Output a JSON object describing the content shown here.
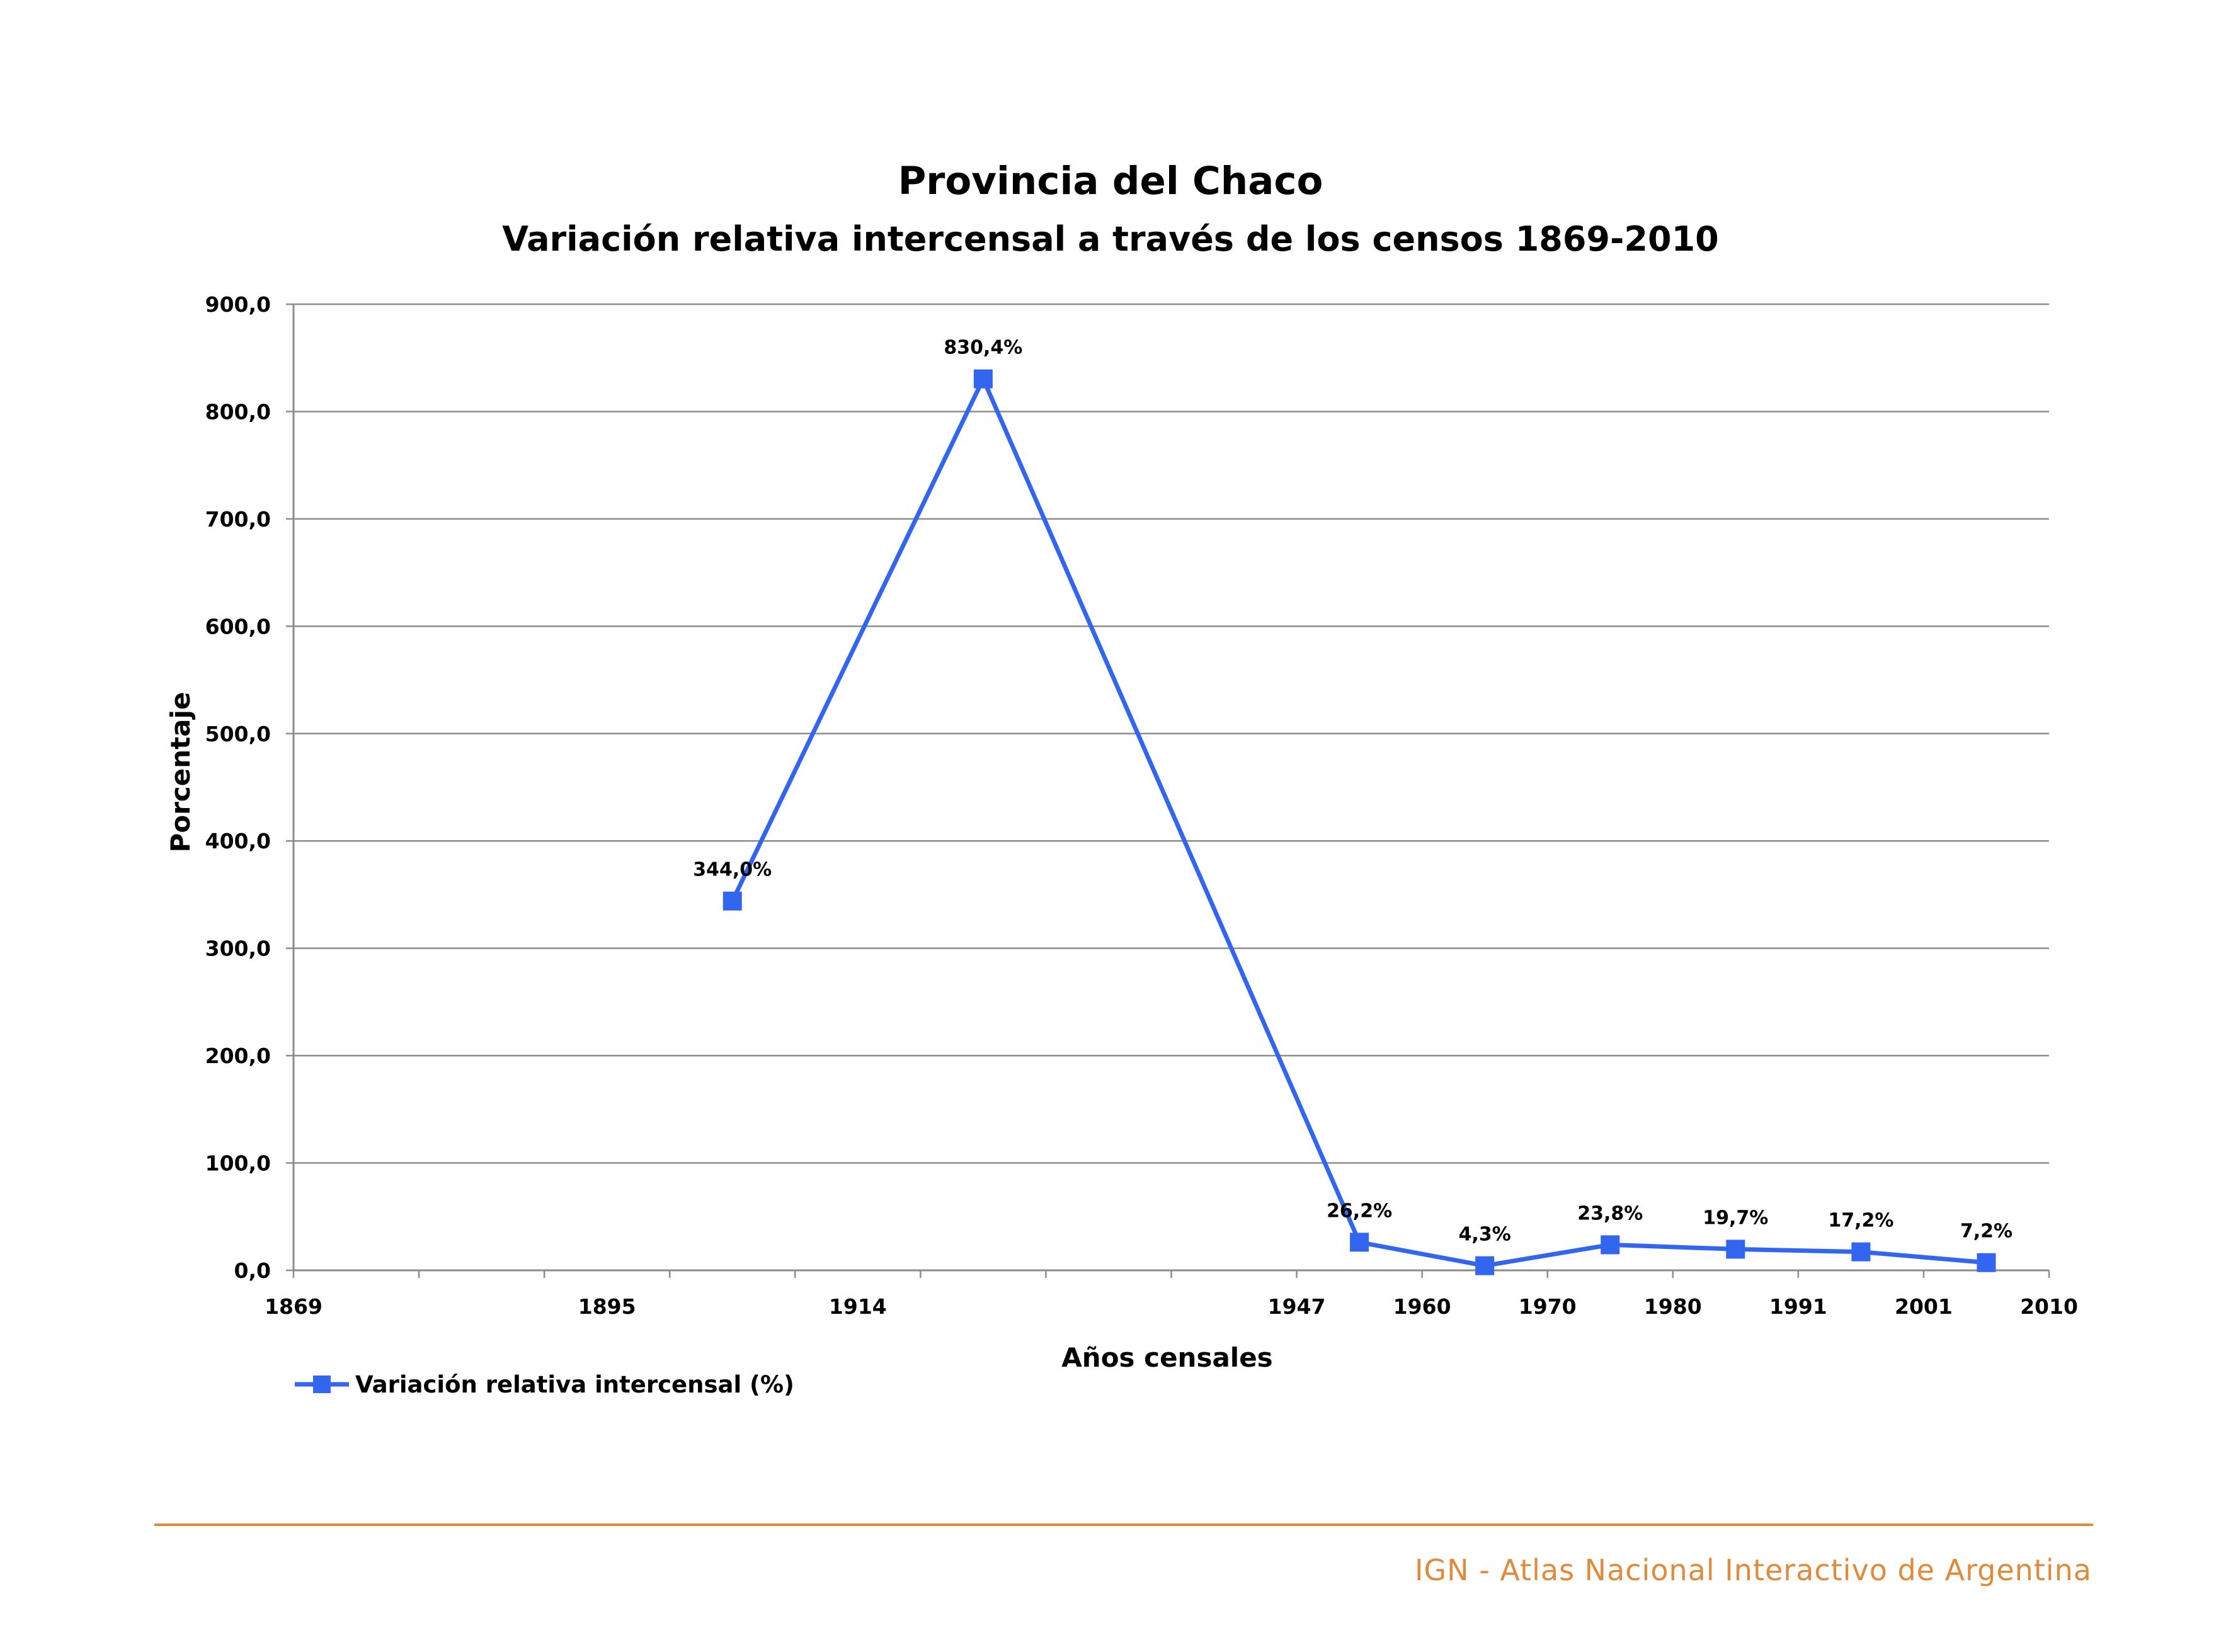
{
  "chart_data": {
    "type": "line",
    "title": "Provincia del Chaco",
    "subtitle": "Variación relativa intercensal a través de los censos 1869-2010",
    "xlabel": "Años censales",
    "ylabel": "Porcentaje",
    "ylim": [
      0,
      900
    ],
    "y_ticks": [
      "0,0",
      "100,0",
      "200,0",
      "300,0",
      "400,0",
      "500,0",
      "600,0",
      "700,0",
      "800,0",
      "900,0"
    ],
    "x_tick_labels": [
      "1869",
      "1895",
      "1914",
      "1947",
      "1960",
      "1970",
      "1980",
      "1991",
      "2001",
      "2010"
    ],
    "grid": true,
    "legend": "bottom-left",
    "series": [
      {
        "name": "Variación relativa intercensal (%)",
        "color": "#3366ee",
        "marker": "square",
        "points": [
          {
            "period": "1895-1914",
            "value": 344.0,
            "label": "344,0%"
          },
          {
            "period": "1914-1947",
            "value": 830.4,
            "label": "830,4%"
          },
          {
            "period": "1947-1960",
            "value": 26.2,
            "label": "26,2%"
          },
          {
            "period": "1960-1970",
            "value": 4.3,
            "label": "4,3%"
          },
          {
            "period": "1970-1980",
            "value": 23.8,
            "label": "23,8%"
          },
          {
            "period": "1980-1991",
            "value": 19.7,
            "label": "19,7%"
          },
          {
            "period": "1991-2001",
            "value": 17.2,
            "label": "17,2%"
          },
          {
            "period": "2001-2010",
            "value": 7.2,
            "label": "7,2%"
          }
        ]
      }
    ]
  },
  "footer": {
    "text": "IGN - Atlas Nacional Interactivo de Argentina",
    "color": "#e08a3c"
  }
}
